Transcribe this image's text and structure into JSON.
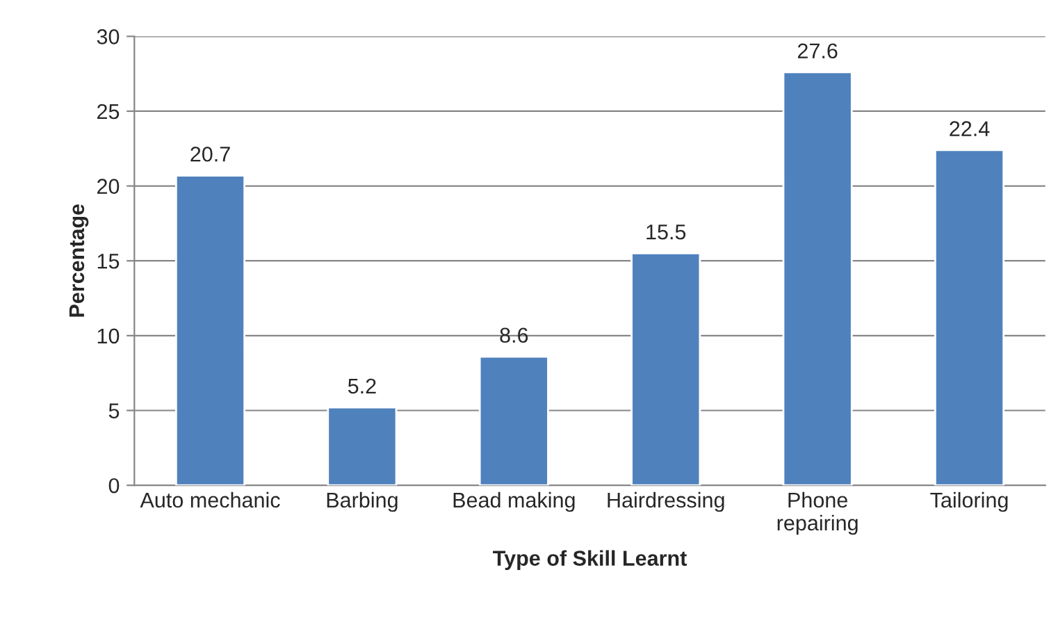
{
  "chart_data": {
    "type": "bar",
    "xlabel": "Type of Skill Learnt",
    "ylabel": "Percentage",
    "categories": [
      "Auto mechanic",
      "Barbing",
      "Bead making",
      "Hairdressing",
      "Phone\nrepairing",
      "Tailoring"
    ],
    "values": [
      20.7,
      5.2,
      8.6,
      15.5,
      27.6,
      22.4
    ],
    "color": "#4f81bd",
    "ylim": [
      0,
      30
    ],
    "yticks": [
      0,
      5,
      10,
      15,
      20,
      25,
      30
    ],
    "grid": "y",
    "data_labels": true,
    "legend": false
  }
}
